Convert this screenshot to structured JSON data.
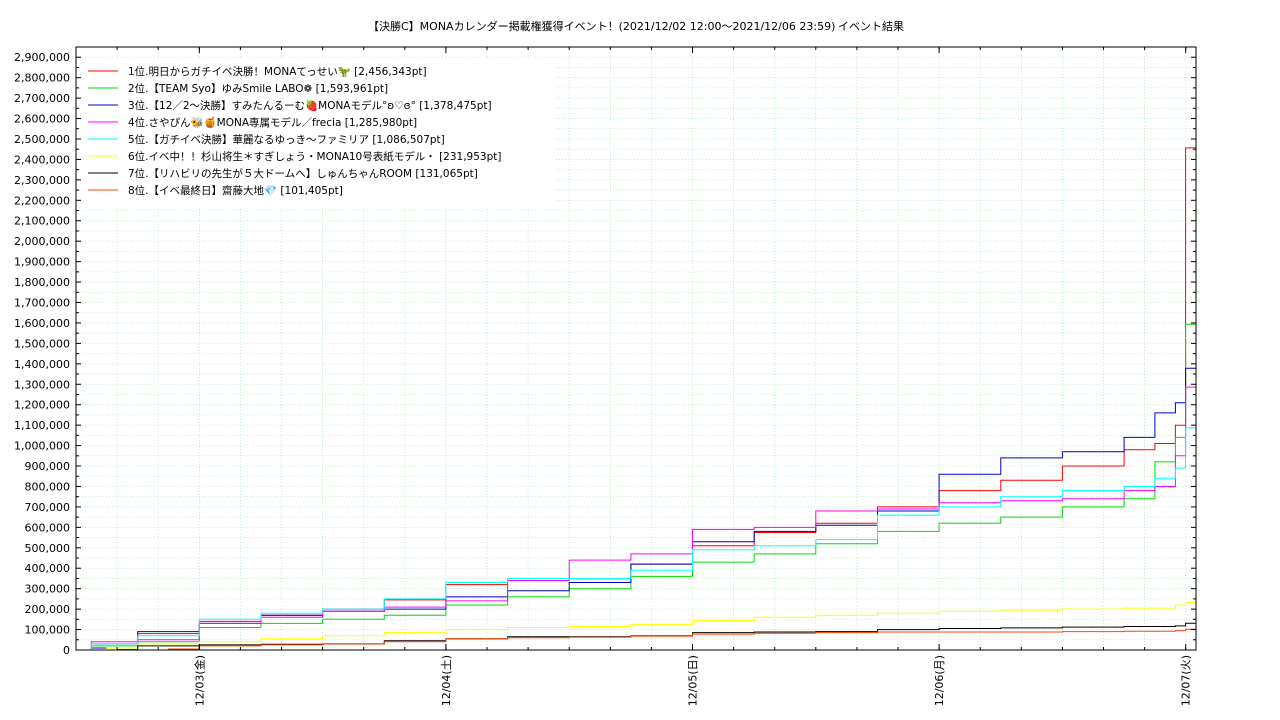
{
  "chart_data": {
    "type": "line",
    "title": "【決勝C】MONAカレンダー掲載権獲得イベント！(2021/12/02 12:00～2021/12/06 23:59)",
    "title_suffix": "イベント結果",
    "ylim": [
      0,
      2950000
    ],
    "xlim": [
      "2021-12-02 12:00",
      "2021-12-07 01:00"
    ],
    "y_ticks": [
      0,
      100000,
      200000,
      300000,
      400000,
      500000,
      600000,
      700000,
      800000,
      900000,
      1000000,
      1100000,
      1200000,
      1300000,
      1400000,
      1500000,
      1600000,
      1700000,
      1800000,
      1900000,
      2000000,
      2100000,
      2200000,
      2300000,
      2400000,
      2500000,
      2600000,
      2700000,
      2800000,
      2900000
    ],
    "y_tick_labels": [
      "0",
      "100,000",
      "200,000",
      "300,000",
      "400,000",
      "500,000",
      "600,000",
      "700,000",
      "800,000",
      "900,000",
      "1,000,000",
      "1,100,000",
      "1,200,000",
      "1,300,000",
      "1,400,000",
      "1,500,000",
      "1,600,000",
      "1,700,000",
      "1,800,000",
      "1,900,000",
      "2,000,000",
      "2,100,000",
      "2,200,000",
      "2,300,000",
      "2,400,000",
      "2,500,000",
      "2,600,000",
      "2,700,000",
      "2,800,000",
      "2,900,000"
    ],
    "x_ticks": [
      "2021-12-03 00:00",
      "2021-12-04 00:00",
      "2021-12-05 00:00",
      "2021-12-06 00:00",
      "2021-12-07 00:00"
    ],
    "x_tick_labels": [
      "12/03(金)",
      "12/04(土)",
      "12/05(日)",
      "12/06(月)",
      "12/07(火)"
    ],
    "grid": true,
    "legend_position": "top-left",
    "series": [
      {
        "name": "1位.明日からガチイベ決勝！MONAてっせい🦖",
        "value_label": "[2,456,343pt]",
        "color": "#ff0000",
        "x": [
          "2021-12-02 12:00",
          "2021-12-02 13:30",
          "2021-12-02 18:00",
          "2021-12-03 00:00",
          "2021-12-03 06:00",
          "2021-12-03 12:00",
          "2021-12-03 18:00",
          "2021-12-04 00:00",
          "2021-12-04 06:00",
          "2021-12-04 12:00",
          "2021-12-04 18:00",
          "2021-12-05 00:00",
          "2021-12-05 06:00",
          "2021-12-05 12:00",
          "2021-12-05 18:00",
          "2021-12-06 00:00",
          "2021-12-06 06:00",
          "2021-12-06 12:00",
          "2021-12-06 18:00",
          "2021-12-06 21:00",
          "2021-12-06 23:00",
          "2021-12-06 23:59",
          "2021-12-07 01:00"
        ],
        "y": [
          0,
          30000,
          80000,
          140000,
          170000,
          200000,
          245000,
          320000,
          350000,
          350000,
          420000,
          510000,
          575000,
          620000,
          700000,
          780000,
          830000,
          900000,
          980000,
          1010000,
          1100000,
          2456343,
          2456343
        ]
      },
      {
        "name": "2位.【TEAM Syo】ゆみSmile LABO❁",
        "value_label": "[1,593,961pt]",
        "color": "#00dd00",
        "x": [
          "2021-12-02 12:00",
          "2021-12-02 13:30",
          "2021-12-02 18:00",
          "2021-12-03 00:00",
          "2021-12-03 06:00",
          "2021-12-03 12:00",
          "2021-12-03 18:00",
          "2021-12-04 00:00",
          "2021-12-04 06:00",
          "2021-12-04 12:00",
          "2021-12-04 18:00",
          "2021-12-05 00:00",
          "2021-12-05 06:00",
          "2021-12-05 12:00",
          "2021-12-05 18:00",
          "2021-12-06 00:00",
          "2021-12-06 06:00",
          "2021-12-06 12:00",
          "2021-12-06 18:00",
          "2021-12-06 21:00",
          "2021-12-06 23:00",
          "2021-12-06 23:59",
          "2021-12-07 01:00"
        ],
        "y": [
          0,
          20000,
          40000,
          110000,
          130000,
          150000,
          170000,
          220000,
          260000,
          300000,
          360000,
          430000,
          470000,
          520000,
          580000,
          620000,
          650000,
          700000,
          740000,
          920000,
          1040000,
          1593961,
          1593961
        ]
      },
      {
        "name": "3位.【12／2～決勝】すみたんるーむ🍓MONAモデル°ʚ♡ɞ°",
        "value_label": "[1,378,475pt]",
        "color": "#0000cc",
        "x": [
          "2021-12-02 12:00",
          "2021-12-02 13:30",
          "2021-12-02 18:00",
          "2021-12-03 00:00",
          "2021-12-03 06:00",
          "2021-12-03 12:00",
          "2021-12-03 18:00",
          "2021-12-04 00:00",
          "2021-12-04 06:00",
          "2021-12-04 12:00",
          "2021-12-04 18:00",
          "2021-12-05 00:00",
          "2021-12-05 06:00",
          "2021-12-05 12:00",
          "2021-12-05 18:00",
          "2021-12-06 00:00",
          "2021-12-06 06:00",
          "2021-12-06 12:00",
          "2021-12-06 18:00",
          "2021-12-06 21:00",
          "2021-12-06 23:00",
          "2021-12-06 23:59",
          "2021-12-07 01:00"
        ],
        "y": [
          0,
          10000,
          90000,
          130000,
          170000,
          190000,
          200000,
          260000,
          290000,
          330000,
          420000,
          530000,
          580000,
          610000,
          680000,
          860000,
          940000,
          970000,
          1040000,
          1160000,
          1210000,
          1378475,
          1378475
        ]
      },
      {
        "name": "4位.さやぴん🐝🍯MONA専属モデル／frecia",
        "value_label": "[1,285,980pt]",
        "color": "#ff00ff",
        "x": [
          "2021-12-02 12:00",
          "2021-12-02 13:30",
          "2021-12-02 18:00",
          "2021-12-03 00:00",
          "2021-12-03 06:00",
          "2021-12-03 12:00",
          "2021-12-03 18:00",
          "2021-12-04 00:00",
          "2021-12-04 06:00",
          "2021-12-04 12:00",
          "2021-12-04 18:00",
          "2021-12-05 00:00",
          "2021-12-05 06:00",
          "2021-12-05 12:00",
          "2021-12-05 18:00",
          "2021-12-06 00:00",
          "2021-12-06 06:00",
          "2021-12-06 12:00",
          "2021-12-06 18:00",
          "2021-12-06 21:00",
          "2021-12-06 23:00",
          "2021-12-06 23:59",
          "2021-12-07 01:00"
        ],
        "y": [
          0,
          40000,
          50000,
          130000,
          160000,
          190000,
          210000,
          240000,
          340000,
          440000,
          470000,
          590000,
          600000,
          680000,
          690000,
          720000,
          730000,
          740000,
          780000,
          800000,
          950000,
          1285980,
          1285980
        ]
      },
      {
        "name": "5位.【ガチイベ決勝】華麗なるゆっき〜ファミリア",
        "value_label": "[1,086,507pt]",
        "color": "#00ffff",
        "x": [
          "2021-12-02 12:00",
          "2021-12-02 13:30",
          "2021-12-02 18:00",
          "2021-12-03 00:00",
          "2021-12-03 06:00",
          "2021-12-03 12:00",
          "2021-12-03 18:00",
          "2021-12-04 00:00",
          "2021-12-04 06:00",
          "2021-12-04 12:00",
          "2021-12-04 18:00",
          "2021-12-05 00:00",
          "2021-12-05 06:00",
          "2021-12-05 12:00",
          "2021-12-05 18:00",
          "2021-12-06 00:00",
          "2021-12-06 06:00",
          "2021-12-06 12:00",
          "2021-12-06 18:00",
          "2021-12-06 21:00",
          "2021-12-06 23:00",
          "2021-12-06 23:59",
          "2021-12-07 01:00"
        ],
        "y": [
          0,
          30000,
          70000,
          150000,
          180000,
          200000,
          250000,
          330000,
          350000,
          350000,
          390000,
          490000,
          510000,
          540000,
          660000,
          700000,
          750000,
          780000,
          800000,
          840000,
          890000,
          1086507,
          1086507
        ]
      },
      {
        "name": "6位.イベ中！！杉山将生＊すぎしょう・MONA10号表紙モデル・",
        "value_label": "[231,953pt]",
        "color": "#ffff00",
        "x": [
          "2021-12-02 12:00",
          "2021-12-02 15:00",
          "2021-12-02 18:00",
          "2021-12-03 00:00",
          "2021-12-03 06:00",
          "2021-12-03 12:00",
          "2021-12-03 18:00",
          "2021-12-04 00:00",
          "2021-12-04 06:00",
          "2021-12-04 12:00",
          "2021-12-04 18:00",
          "2021-12-05 00:00",
          "2021-12-05 06:00",
          "2021-12-05 12:00",
          "2021-12-05 18:00",
          "2021-12-06 00:00",
          "2021-12-06 06:00",
          "2021-12-06 12:00",
          "2021-12-06 18:00",
          "2021-12-06 23:00",
          "2021-12-06 23:59",
          "2021-12-07 01:00"
        ],
        "y": [
          0,
          10000,
          30000,
          40000,
          55000,
          70000,
          85000,
          100000,
          110000,
          115000,
          125000,
          145000,
          160000,
          170000,
          180000,
          190000,
          195000,
          200000,
          205000,
          220000,
          231953,
          231953
        ]
      },
      {
        "name": "7位.【リハビリの先生が５大ドームへ】しゅんちゃんROOM",
        "value_label": "[131,065pt]",
        "color": "#000000",
        "x": [
          "2021-12-02 12:00",
          "2021-12-02 16:00",
          "2021-12-02 18:00",
          "2021-12-03 00:00",
          "2021-12-03 06:00",
          "2021-12-03 12:00",
          "2021-12-03 18:00",
          "2021-12-04 00:00",
          "2021-12-04 06:00",
          "2021-12-04 12:00",
          "2021-12-04 18:00",
          "2021-12-05 00:00",
          "2021-12-05 06:00",
          "2021-12-05 12:00",
          "2021-12-05 18:00",
          "2021-12-06 00:00",
          "2021-12-06 06:00",
          "2021-12-06 12:00",
          "2021-12-06 18:00",
          "2021-12-06 23:00",
          "2021-12-06 23:59",
          "2021-12-07 01:00"
        ],
        "y": [
          0,
          2000,
          20000,
          25000,
          28000,
          30000,
          45000,
          55000,
          65000,
          65000,
          70000,
          85000,
          88000,
          90000,
          100000,
          105000,
          108000,
          112000,
          115000,
          118000,
          131065,
          131065
        ]
      },
      {
        "name": "8位.【イベ最終日】齋藤大地💎",
        "value_label": "[101,405pt]",
        "color": "#ff4400",
        "x": [
          "2021-12-02 12:00",
          "2021-12-02 21:00",
          "2021-12-03 00:00",
          "2021-12-03 06:00",
          "2021-12-03 12:00",
          "2021-12-03 18:00",
          "2021-12-04 00:00",
          "2021-12-04 06:00",
          "2021-12-04 12:00",
          "2021-12-04 18:00",
          "2021-12-05 00:00",
          "2021-12-05 06:00",
          "2021-12-05 12:00",
          "2021-12-05 18:00",
          "2021-12-06 00:00",
          "2021-12-06 06:00",
          "2021-12-06 12:00",
          "2021-12-06 18:00",
          "2021-12-06 23:00",
          "2021-12-06 23:59",
          "2021-12-07 01:00"
        ],
        "y": [
          0,
          5000,
          20000,
          25000,
          30000,
          40000,
          55000,
          60000,
          62000,
          68000,
          78000,
          82000,
          85000,
          88000,
          88000,
          88000,
          90000,
          92000,
          95000,
          101405,
          101405
        ]
      }
    ]
  }
}
